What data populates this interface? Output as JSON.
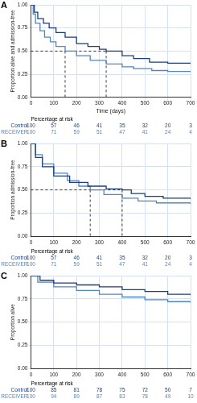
{
  "chart_data": [
    {
      "type": "line",
      "title": "A",
      "y_label": "Proportion alive and admission-free",
      "x_label": "Time (days)",
      "xlim": [
        0,
        700
      ],
      "ylim": [
        0,
        1
      ],
      "xticks": [
        0,
        100,
        200,
        300,
        400,
        500,
        600,
        700
      ],
      "yticks": [
        {
          "value": 0,
          "label": "0.00"
        },
        {
          "value": 0.25,
          "label": "0.25"
        },
        {
          "value": 0.5,
          "label": "0.50"
        },
        {
          "value": 0.75,
          "label": "0.75"
        },
        {
          "value": 1,
          "label": "1.00"
        }
      ],
      "grid": true,
      "series": [
        {
          "name": "Control",
          "color": "#1b3f7a",
          "line_style": "step",
          "x": [
            0,
            15,
            30,
            55,
            80,
            110,
            150,
            200,
            250,
            300,
            330,
            400,
            450,
            520,
            600,
            700
          ],
          "values": [
            1,
            0.92,
            0.85,
            0.8,
            0.75,
            0.7,
            0.65,
            0.58,
            0.55,
            0.52,
            0.5,
            0.45,
            0.42,
            0.38,
            0.37,
            0.37
          ]
        },
        {
          "name": "RECEIVER",
          "color": "#4f86c6",
          "line_style": "step",
          "x": [
            0,
            10,
            20,
            40,
            60,
            85,
            110,
            150,
            200,
            260,
            330,
            400,
            450,
            530,
            600,
            700
          ],
          "values": [
            1,
            0.9,
            0.8,
            0.72,
            0.65,
            0.6,
            0.55,
            0.5,
            0.45,
            0.4,
            0.36,
            0.33,
            0.31,
            0.29,
            0.28,
            0.28
          ]
        }
      ],
      "medians": {
        "y": 0.5,
        "x": [
          150,
          330
        ]
      },
      "at_risk": {
        "title": "Percentage at risk",
        "rows": [
          {
            "name": "Control",
            "values": [
              100,
              57,
              46,
              41,
              35,
              32,
              20,
              3
            ]
          },
          {
            "name": "RECEIVER",
            "values": [
              100,
              71,
              59,
              51,
              47,
              41,
              24,
              4
            ]
          }
        ]
      }
    },
    {
      "type": "line",
      "title": "B",
      "y_label": "Proportion admission-free",
      "xlim": [
        0,
        700
      ],
      "ylim": [
        0,
        1
      ],
      "xticks": [
        0,
        100,
        200,
        300,
        400,
        500,
        600,
        700
      ],
      "yticks": [
        {
          "value": 0,
          "label": "0.00"
        },
        {
          "value": 0.25,
          "label": "0.25"
        },
        {
          "value": 0.5,
          "label": "0.50"
        },
        {
          "value": 0.75,
          "label": "0.75"
        },
        {
          "value": 1,
          "label": "1.00"
        }
      ],
      "grid": true,
      "series": [
        {
          "name": "Control",
          "color": "#1b3f7a",
          "line_style": "step",
          "x": [
            0,
            20,
            50,
            100,
            170,
            250,
            330,
            400,
            440,
            500,
            580,
            700
          ],
          "values": [
            1,
            0.85,
            0.75,
            0.65,
            0.58,
            0.54,
            0.51,
            0.5,
            0.46,
            0.43,
            0.41,
            0.4
          ]
        },
        {
          "name": "RECEIVER",
          "color": "#4f86c6",
          "line_style": "step",
          "x": [
            0,
            20,
            50,
            100,
            160,
            210,
            260,
            320,
            400,
            470,
            550,
            700
          ],
          "values": [
            1,
            0.88,
            0.78,
            0.68,
            0.6,
            0.54,
            0.5,
            0.45,
            0.41,
            0.38,
            0.36,
            0.35
          ]
        }
      ],
      "medians": {
        "y": 0.5,
        "x": [
          260,
          400
        ]
      },
      "at_risk": {
        "title": "Percentage at risk",
        "rows": [
          {
            "name": "Control",
            "values": [
              100,
              57,
              46,
              41,
              35,
              32,
              20,
              3
            ]
          },
          {
            "name": "RECEIVER",
            "values": [
              100,
              71,
              59,
              51,
              47,
              41,
              24,
              4
            ]
          }
        ]
      }
    },
    {
      "type": "line",
      "title": "C",
      "y_label": "Proportion alive",
      "xlim": [
        0,
        700
      ],
      "ylim": [
        0,
        1
      ],
      "xticks": [
        0,
        100,
        200,
        300,
        400,
        500,
        600,
        700
      ],
      "yticks": [
        {
          "value": 0,
          "label": "0.00"
        },
        {
          "value": 0.25,
          "label": "0.25"
        },
        {
          "value": 0.5,
          "label": "0.50"
        },
        {
          "value": 0.75,
          "label": "0.75"
        },
        {
          "value": 1,
          "label": "1.00"
        }
      ],
      "grid": true,
      "series": [
        {
          "name": "Control",
          "color": "#1b3f7a",
          "line_style": "step",
          "x": [
            0,
            40,
            100,
            200,
            300,
            400,
            500,
            600,
            700
          ],
          "values": [
            1,
            0.95,
            0.92,
            0.9,
            0.88,
            0.85,
            0.83,
            0.8,
            0.79
          ]
        },
        {
          "name": "RECEIVER",
          "color": "#4f86c6",
          "line_style": "step",
          "x": [
            0,
            30,
            100,
            200,
            300,
            400,
            500,
            600,
            700
          ],
          "values": [
            1,
            0.93,
            0.88,
            0.84,
            0.8,
            0.77,
            0.74,
            0.72,
            0.71
          ]
        }
      ],
      "at_risk": {
        "title": "Percentage at risk",
        "rows": [
          {
            "name": "Control",
            "values": [
              100,
              85,
              81,
              78,
              75,
              72,
              50,
              7
            ]
          },
          {
            "name": "RECEIVER",
            "values": [
              100,
              94,
              89,
              87,
              83,
              78,
              49,
              10
            ]
          }
        ]
      }
    }
  ]
}
